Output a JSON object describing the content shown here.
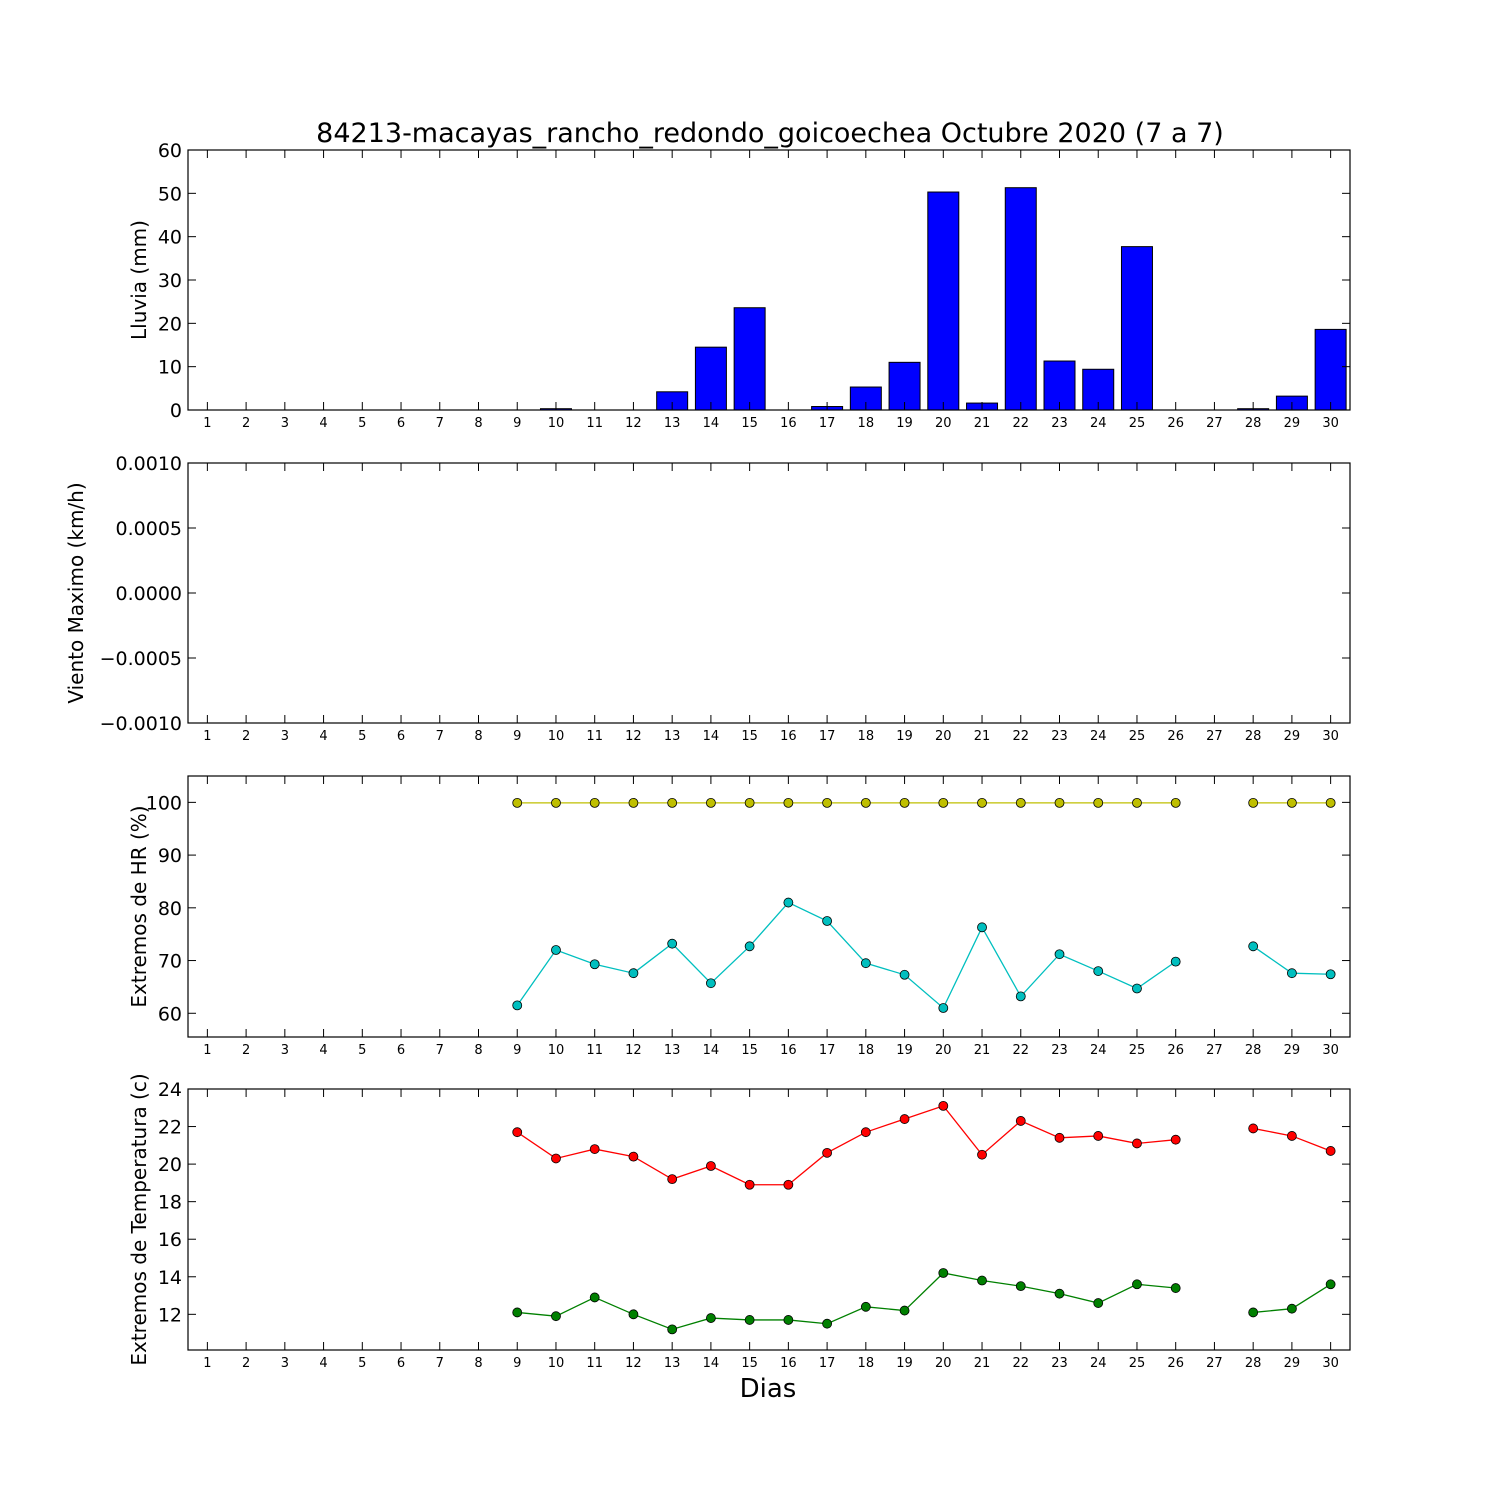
{
  "figure": {
    "title": "84213-macayas_rancho_redondo_goicoechea Octubre 2020  (7 a 7)",
    "xlabel": "Dias"
  },
  "chart_data": [
    {
      "type": "bar",
      "ylabel": "Lluvia (mm)",
      "ylim": [
        0,
        60
      ],
      "yticks": [
        0,
        10,
        20,
        30,
        40,
        50,
        60
      ],
      "ytick_labels": [
        "0",
        "10",
        "20",
        "30",
        "40",
        "50",
        "60"
      ],
      "xlim": [
        0.5,
        30.5
      ],
      "categories": [
        "1",
        "2",
        "3",
        "4",
        "5",
        "6",
        "7",
        "8",
        "9",
        "10",
        "11",
        "12",
        "13",
        "14",
        "15",
        "16",
        "17",
        "18",
        "19",
        "20",
        "21",
        "22",
        "23",
        "24",
        "25",
        "26",
        "27",
        "28",
        "29",
        "30"
      ],
      "series": [
        {
          "color": "#0000ff",
          "values": [
            0,
            0,
            0,
            0,
            0,
            0,
            0,
            0,
            0,
            0.3,
            0,
            0,
            4.2,
            14.5,
            23.6,
            0,
            0.8,
            5.3,
            11,
            50.3,
            1.6,
            51.3,
            11.3,
            9.4,
            37.7,
            0,
            0,
            0.3,
            3.2,
            18.6
          ]
        }
      ],
      "grid": false
    },
    {
      "type": "line",
      "ylabel": "Viento Maximo (km/h)",
      "ylim": [
        -0.001,
        0.001
      ],
      "yticks": [
        -0.001,
        -0.0005,
        0,
        0.0005,
        0.001
      ],
      "ytick_labels": [
        "−0.0010",
        "−0.0005",
        "0.0000",
        "0.0005",
        "0.0010"
      ],
      "xlim": [
        0.5,
        30.5
      ],
      "categories": [
        "1",
        "2",
        "3",
        "4",
        "5",
        "6",
        "7",
        "8",
        "9",
        "10",
        "11",
        "12",
        "13",
        "14",
        "15",
        "16",
        "17",
        "18",
        "19",
        "20",
        "21",
        "22",
        "23",
        "24",
        "25",
        "26",
        "27",
        "28",
        "29",
        "30"
      ],
      "series": [],
      "grid": false
    },
    {
      "type": "line",
      "ylabel": "Extremos de HR (%)",
      "ylim": [
        55.5,
        105
      ],
      "yticks": [
        60,
        70,
        80,
        90,
        100
      ],
      "ytick_labels": [
        "60",
        "70",
        "80",
        "90",
        "100"
      ],
      "xlim": [
        0.5,
        30.5
      ],
      "categories": [
        "1",
        "2",
        "3",
        "4",
        "5",
        "6",
        "7",
        "8",
        "9",
        "10",
        "11",
        "12",
        "13",
        "14",
        "15",
        "16",
        "17",
        "18",
        "19",
        "20",
        "21",
        "22",
        "23",
        "24",
        "25",
        "26",
        "27",
        "28",
        "29",
        "30"
      ],
      "series": [
        {
          "color": "#bfbf00",
          "values": [
            null,
            null,
            null,
            null,
            null,
            null,
            null,
            null,
            99.9,
            99.9,
            99.9,
            99.9,
            99.9,
            99.9,
            99.9,
            99.9,
            99.9,
            99.9,
            99.9,
            99.9,
            99.9,
            99.9,
            99.9,
            99.9,
            99.9,
            99.9,
            null,
            99.9,
            99.9,
            99.9
          ]
        },
        {
          "color": "#00bfbf",
          "values": [
            null,
            null,
            null,
            null,
            null,
            null,
            null,
            null,
            61.5,
            72,
            69.3,
            67.6,
            73.2,
            65.7,
            72.7,
            81,
            77.5,
            69.5,
            67.3,
            61,
            76.3,
            63.2,
            71.2,
            68,
            64.7,
            69.8,
            null,
            72.7,
            67.6,
            67.4
          ]
        }
      ],
      "grid": false
    },
    {
      "type": "line",
      "ylabel": "Extremos de Temperatura (c)",
      "ylim": [
        10.1,
        24
      ],
      "yticks": [
        12,
        14,
        16,
        18,
        20,
        22,
        24
      ],
      "ytick_labels": [
        "12",
        "14",
        "16",
        "18",
        "20",
        "22",
        "24"
      ],
      "xlim": [
        0.5,
        30.5
      ],
      "categories": [
        "1",
        "2",
        "3",
        "4",
        "5",
        "6",
        "7",
        "8",
        "9",
        "10",
        "11",
        "12",
        "13",
        "14",
        "15",
        "16",
        "17",
        "18",
        "19",
        "20",
        "21",
        "22",
        "23",
        "24",
        "25",
        "26",
        "27",
        "28",
        "29",
        "30"
      ],
      "series": [
        {
          "color": "#ff0000",
          "values": [
            null,
            null,
            null,
            null,
            null,
            null,
            null,
            null,
            21.7,
            20.3,
            20.8,
            20.4,
            19.2,
            19.9,
            18.9,
            18.9,
            20.6,
            21.7,
            22.4,
            23.1,
            20.5,
            22.3,
            21.4,
            21.5,
            21.1,
            21.3,
            null,
            21.9,
            21.5,
            20.7
          ]
        },
        {
          "color": "#008000",
          "values": [
            null,
            null,
            null,
            null,
            null,
            null,
            null,
            null,
            12.1,
            11.9,
            12.9,
            12,
            11.2,
            11.8,
            11.7,
            11.7,
            11.5,
            12.4,
            12.2,
            14.2,
            13.8,
            13.5,
            13.1,
            12.6,
            13.6,
            13.4,
            null,
            12.1,
            12.3,
            13.6
          ]
        }
      ],
      "grid": false
    }
  ]
}
